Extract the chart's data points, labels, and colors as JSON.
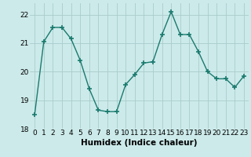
{
  "x": [
    0,
    1,
    2,
    3,
    4,
    5,
    6,
    7,
    8,
    9,
    10,
    11,
    12,
    13,
    14,
    15,
    16,
    17,
    18,
    19,
    20,
    21,
    22,
    23
  ],
  "y": [
    18.5,
    21.05,
    21.55,
    21.55,
    21.15,
    20.4,
    19.4,
    18.65,
    18.6,
    18.6,
    19.55,
    19.9,
    20.3,
    20.35,
    21.3,
    22.1,
    21.3,
    21.3,
    20.7,
    20.0,
    19.75,
    19.75,
    19.45,
    19.85
  ],
  "line_color": "#1a7a6e",
  "marker": "+",
  "markersize": 4,
  "linewidth": 1.0,
  "xlabel": "Humidex (Indice chaleur)",
  "ylim": [
    18,
    22.4
  ],
  "xlim": [
    -0.5,
    23.5
  ],
  "yticks": [
    18,
    19,
    20,
    21,
    22
  ],
  "ytick_labels": [
    "18",
    "19",
    "20",
    "21",
    "22"
  ],
  "xtick_labels": [
    "0",
    "1",
    "2",
    "3",
    "4",
    "5",
    "6",
    "7",
    "8",
    "9",
    "10",
    "11",
    "12",
    "13",
    "14",
    "15",
    "16",
    "17",
    "18",
    "19",
    "20",
    "21",
    "22",
    "23"
  ],
  "bg_color": "#cceaea",
  "grid_color": "#aacccc",
  "label_fontsize": 7.5,
  "tick_fontsize": 6.5
}
